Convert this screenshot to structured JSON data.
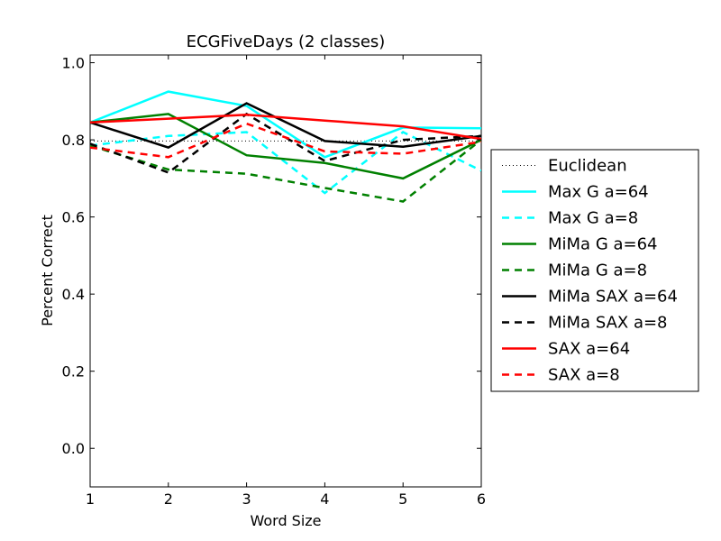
{
  "chart_data": {
    "type": "line",
    "title": "ECGFiveDays (2 classes)",
    "xlabel": "Word Size",
    "ylabel": "Percent Correct",
    "xlim": [
      1,
      6
    ],
    "ylim": [
      -0.1,
      1.02
    ],
    "x_ticks": [
      "1",
      "2",
      "3",
      "4",
      "5",
      "6"
    ],
    "y_ticks": [
      "0.0",
      "0.2",
      "0.4",
      "0.6",
      "0.8",
      "1.0"
    ],
    "grid": false,
    "legend_position": "right, outside",
    "x": [
      1,
      2,
      3,
      4,
      5,
      6
    ],
    "series": [
      {
        "name": "Euclidean",
        "color": "#000000",
        "style": "dotted",
        "values": [
          0.797,
          0.797,
          0.797,
          0.797,
          0.797,
          0.797
        ]
      },
      {
        "name": "Max G a=64",
        "color": "#00ffff",
        "style": "solid",
        "values": [
          0.845,
          0.925,
          0.888,
          0.755,
          0.832,
          0.83
        ]
      },
      {
        "name": "Max G a=8",
        "color": "#00ffff",
        "style": "dashed",
        "values": [
          0.785,
          0.81,
          0.82,
          0.662,
          0.82,
          0.72
        ]
      },
      {
        "name": "MiMa G a=64",
        "color": "#008000",
        "style": "solid",
        "values": [
          0.845,
          0.867,
          0.76,
          0.74,
          0.7,
          0.8
        ]
      },
      {
        "name": "MiMa G a=8",
        "color": "#008000",
        "style": "dashed",
        "values": [
          0.785,
          0.723,
          0.712,
          0.675,
          0.64,
          0.8
        ]
      },
      {
        "name": "MiMa SAX a=64",
        "color": "#000000",
        "style": "solid",
        "values": [
          0.845,
          0.78,
          0.895,
          0.797,
          0.782,
          0.81
        ]
      },
      {
        "name": "MiMa SAX a=8",
        "color": "#000000",
        "style": "dashed",
        "values": [
          0.79,
          0.715,
          0.867,
          0.745,
          0.8,
          0.81
        ]
      },
      {
        "name": "SAX a=64",
        "color": "#ff0000",
        "style": "solid",
        "values": [
          0.845,
          0.855,
          0.865,
          0.85,
          0.835,
          0.802
        ]
      },
      {
        "name": "SAX a=8",
        "color": "#ff0000",
        "style": "dashed",
        "values": [
          0.78,
          0.755,
          0.842,
          0.77,
          0.764,
          0.795
        ]
      }
    ]
  }
}
